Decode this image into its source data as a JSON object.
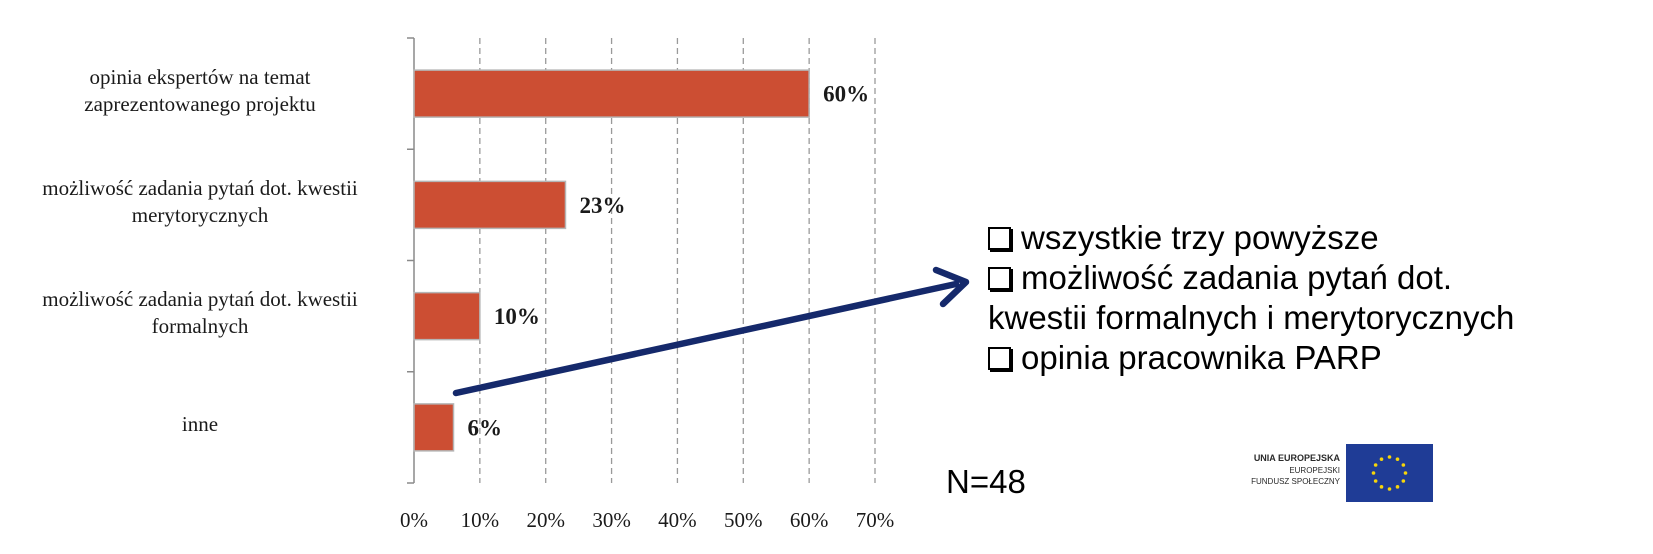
{
  "chart_data": {
    "type": "bar",
    "orientation": "horizontal",
    "categories": [
      [
        "opinia ekspertów na temat",
        "zaprezentowanego projektu"
      ],
      [
        "możliwość zadania pytań dot. kwestii",
        "merytorycznych"
      ],
      [
        "możliwość zadania pytań dot. kwestii",
        "formalnych"
      ],
      [
        "inne"
      ]
    ],
    "values": [
      60,
      23,
      10,
      6
    ],
    "data_labels": [
      "60%",
      "23%",
      "10%",
      "6%"
    ],
    "xlim": [
      0,
      70
    ],
    "x_ticks": [
      "0%",
      "10%",
      "20%",
      "30%",
      "40%",
      "50%",
      "60%",
      "70%"
    ],
    "grid": "vertical dashed",
    "bar_color": "#cc4e33"
  },
  "side_panel": {
    "items": [
      "wszystkie trzy powyższe",
      "możliwość zadania pytań dot.\nkwestii formalnych i merytorycznych",
      "opinia pracownika PARP"
    ]
  },
  "arrow_color": "#15296b",
  "n_label": "N=48",
  "logo": {
    "line1": "UNIA EUROPEJSKA",
    "line2": "EUROPEJSKI",
    "line3": "FUNDUSZ SPOŁECZNY",
    "flag_color": "#1f3c96",
    "star_color": "#f6d50a"
  }
}
